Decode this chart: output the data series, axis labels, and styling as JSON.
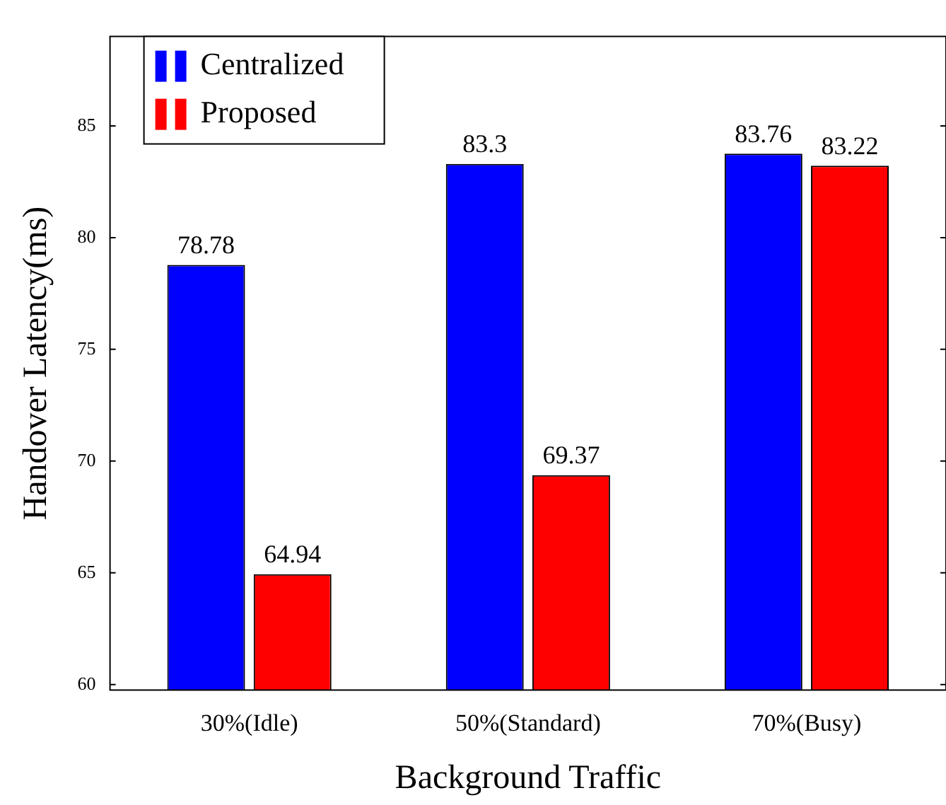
{
  "chart_data": {
    "type": "bar",
    "xlabel": "Background Traffic",
    "ylabel": "Handover Latency(ms)",
    "categories": [
      "30%(Idle)",
      "50%(Standard)",
      "70%(Busy)"
    ],
    "series": [
      {
        "name": "Centralized",
        "color": "#0000ff",
        "values": [
          78.78,
          83.3,
          83.76
        ]
      },
      {
        "name": "Proposed",
        "color": "#ff0000",
        "values": [
          64.94,
          69.37,
          83.22
        ]
      }
    ],
    "ylim": [
      59.75,
      89
    ],
    "yticks": [
      60,
      65,
      70,
      75,
      80,
      85
    ],
    "grid": false,
    "legend": "top left",
    "data_labels": true
  }
}
